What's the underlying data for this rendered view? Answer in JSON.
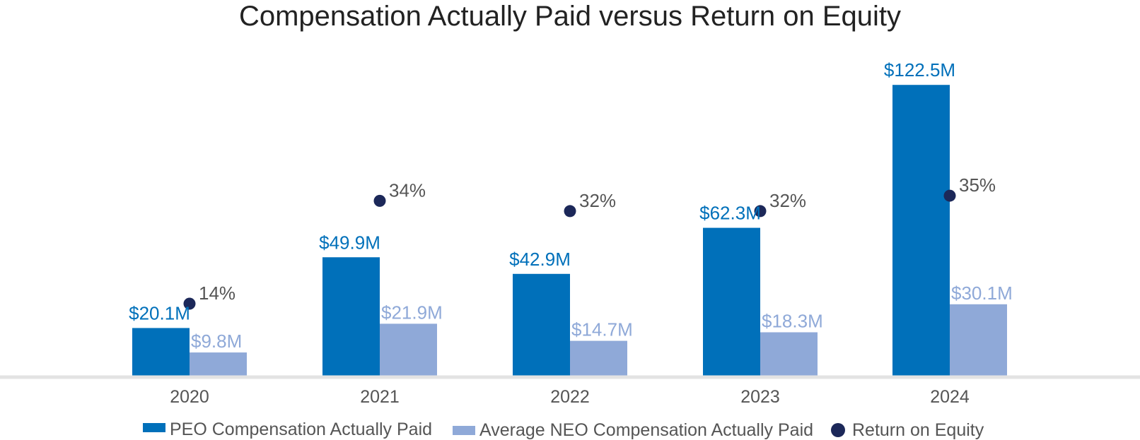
{
  "chart_data": {
    "type": "bar",
    "title": "Compensation Actually Paid versus Return on Equity",
    "categories": [
      "2020",
      "2021",
      "2022",
      "2023",
      "2024"
    ],
    "series": [
      {
        "name": "PEO Compensation Actually Paid",
        "values": [
          20.1,
          49.9,
          42.9,
          62.3,
          122.5
        ],
        "labels": [
          "$20.1M",
          "$49.9M",
          "$42.9M",
          "$62.3M",
          "$122.5M"
        ],
        "color": "#0070BA"
      },
      {
        "name": "Average NEO Compensation Actually Paid",
        "values": [
          9.8,
          21.9,
          14.7,
          18.3,
          30.1
        ],
        "labels": [
          "$9.8M",
          "$21.9M",
          "$14.7M",
          "$18.3M",
          "$30.1M"
        ],
        "color": "#8FA9D8"
      },
      {
        "name": "Return on Equity",
        "type": "scatter",
        "values": [
          14,
          34,
          32,
          32,
          35
        ],
        "labels": [
          "14%",
          "34%",
          "32%",
          "32%",
          "35%"
        ],
        "color": "#1C2859"
      }
    ],
    "ylim_compensation": [
      0,
      130
    ],
    "ylim_roe": [
      0,
      60
    ],
    "legend_position": "bottom",
    "grid": false
  }
}
